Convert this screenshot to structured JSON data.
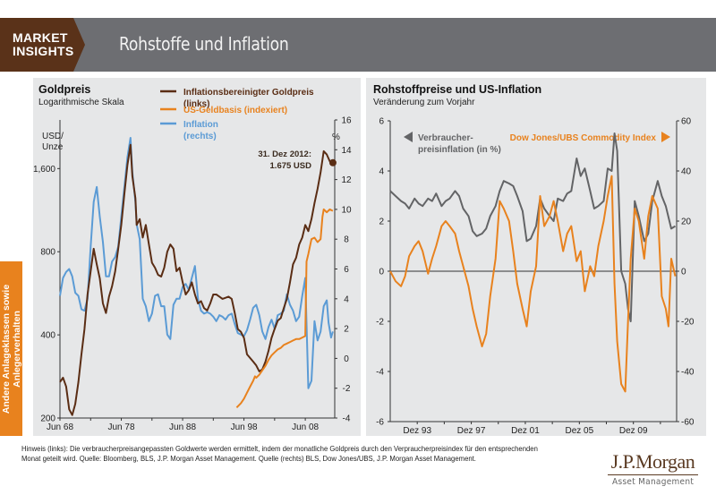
{
  "header": {
    "badge_line1": "MARKET",
    "badge_line2": "INSIGHTS",
    "title": "Rohstoffe und Inflation"
  },
  "sidebar": {
    "tab_line1": "Andere Anlageklassen sowie",
    "tab_line2": "Anlegerverhalten"
  },
  "colors": {
    "brown": "#5a2d14",
    "orange": "#e8821e",
    "blue": "#5b9bd5",
    "gray": "#636466"
  },
  "chart_data": [
    {
      "type": "line",
      "title": "Goldpreis",
      "subtitle": "Logarithmische Skala",
      "ylabel_left": "USD/ Unze",
      "ylabel_right": "%",
      "y_left_scale": "log",
      "y_left_range": [
        200,
        2400
      ],
      "y_left_ticks": [
        "200",
        "400",
        "800",
        "1,600"
      ],
      "y_left_tick_values": [
        200,
        400,
        800,
        1600
      ],
      "y_right_range": [
        -4,
        16
      ],
      "y_right_ticks": [
        "-4",
        "-2",
        "0",
        "2",
        "4",
        "6",
        "8",
        "10",
        "12",
        "14",
        "16"
      ],
      "x_range": [
        1968.5,
        2013.3
      ],
      "x_ticks": [
        "Jun 68",
        "Jun 78",
        "Jun 88",
        "Jun 98",
        "Jun 08"
      ],
      "x_tick_values": [
        1968.5,
        1978.5,
        1988.5,
        1998.5,
        2008.5
      ],
      "annotation": {
        "line1": "31. Dez 2012:",
        "line2": "1.675 USD"
      },
      "legend": [
        {
          "label_line1": "Inflationsbereinigter Goldpreis",
          "label_line2": "(links)",
          "color": "#5a2d14"
        },
        {
          "label_line1": "US-Geldbasis (indexiert)",
          "label_line2": "",
          "color": "#e8821e"
        },
        {
          "label_line1": "Inflation",
          "label_line2": "(rechts)",
          "color": "#5b9bd5"
        }
      ],
      "series": [
        {
          "name": "Inflationsbereinigter Goldpreis (links)",
          "axis": "left",
          "x": [
            1968.5,
            1969,
            1969.5,
            1970,
            1970.5,
            1971,
            1971.5,
            1972,
            1972.5,
            1973,
            1973.5,
            1974,
            1974.5,
            1975,
            1975.5,
            1976,
            1976.5,
            1977,
            1977.5,
            1978,
            1978.5,
            1979,
            1979.5,
            1980,
            1980.3,
            1980.8,
            1981,
            1981.5,
            1982,
            1982.5,
            1983,
            1983.5,
            1984,
            1984.5,
            1985,
            1985.5,
            1986,
            1986.5,
            1987,
            1987.5,
            1988,
            1988.5,
            1989,
            1989.5,
            1990,
            1990.5,
            1991,
            1991.5,
            1992,
            1992.5,
            1993,
            1993.5,
            1994,
            1994.5,
            1995,
            1995.5,
            1996,
            1996.5,
            1997,
            1997.5,
            1998,
            1998.5,
            1999,
            1999.5,
            2000,
            2000.5,
            2001,
            2001.5,
            2002,
            2002.5,
            2003,
            2003.5,
            2004,
            2004.5,
            2005,
            2005.5,
            2006,
            2006.5,
            2007,
            2007.5,
            2008,
            2008.5,
            2009,
            2009.5,
            2010,
            2010.5,
            2011,
            2011.5,
            2012,
            2012.5,
            2013
          ],
          "y": [
            270,
            280,
            260,
            215,
            205,
            225,
            270,
            340,
            420,
            560,
            680,
            820,
            720,
            640,
            520,
            480,
            550,
            600,
            680,
            820,
            1000,
            1300,
            1650,
            1950,
            1500,
            1250,
            1000,
            1050,
            900,
            1000,
            850,
            730,
            700,
            660,
            650,
            700,
            800,
            850,
            820,
            680,
            700,
            620,
            560,
            580,
            620,
            560,
            520,
            530,
            500,
            490,
            520,
            560,
            560,
            550,
            540,
            545,
            550,
            540,
            480,
            420,
            410,
            390,
            340,
            330,
            320,
            310,
            295,
            300,
            320,
            350,
            390,
            420,
            450,
            460,
            500,
            540,
            620,
            720,
            760,
            850,
            900,
            1000,
            950,
            1050,
            1200,
            1350,
            1550,
            1850,
            1800,
            1700,
            1680
          ]
        },
        {
          "name": "US-Geldbasis (indexiert)",
          "axis": "right",
          "x": [
            1997.3,
            1998,
            1998.5,
            1999,
            1999.5,
            2000,
            2000.3,
            2000.5,
            2001,
            2001.5,
            2002,
            2002.5,
            2003,
            2003.5,
            2004,
            2004.5,
            2005,
            2005.5,
            2006,
            2006.5,
            2007,
            2007.5,
            2008,
            2008.5,
            2008.7,
            2009,
            2009.5,
            2010,
            2010.5,
            2011,
            2011.3,
            2011.5,
            2012,
            2012.5,
            2013
          ],
          "y": [
            -3.3,
            -3.0,
            -2.7,
            -2.3,
            -1.9,
            -1.5,
            -1.2,
            -1.3,
            -1.1,
            -0.8,
            -0.5,
            -0.1,
            0.2,
            0.4,
            0.6,
            0.7,
            0.9,
            1.0,
            1.1,
            1.2,
            1.3,
            1.3,
            1.4,
            1.5,
            6.5,
            7.0,
            8.0,
            8.1,
            7.8,
            8.0,
            9.5,
            10.0,
            9.8,
            10.0,
            9.9
          ]
        },
        {
          "name": "Inflation (rechts)",
          "axis": "right",
          "x": [
            1968.5,
            1969,
            1969.5,
            1970,
            1970.5,
            1971,
            1971.5,
            1972,
            1972.5,
            1973,
            1973.5,
            1974,
            1974.5,
            1975,
            1975.5,
            1976,
            1976.5,
            1977,
            1977.5,
            1978,
            1978.5,
            1979,
            1979.5,
            1980,
            1980.3,
            1980.8,
            1981,
            1981.5,
            1982,
            1982.5,
            1983,
            1983.5,
            1984,
            1984.5,
            1985,
            1985.5,
            1986,
            1986.5,
            1987,
            1987.5,
            1988,
            1988.5,
            1989,
            1989.5,
            1990,
            1990.5,
            1991,
            1991.5,
            1992,
            1992.5,
            1993,
            1993.5,
            1994,
            1994.5,
            1995,
            1995.5,
            1996,
            1996.5,
            1997,
            1997.5,
            1998,
            1998.5,
            1999,
            1999.5,
            2000,
            2000.5,
            2001,
            2001.5,
            2002,
            2002.5,
            2003,
            2003.5,
            2004,
            2004.5,
            2005,
            2005.5,
            2006,
            2006.5,
            2007,
            2007.5,
            2008,
            2008.5,
            2009,
            2009.5,
            2010,
            2010.5,
            2011,
            2011.5,
            2012,
            2012.3,
            2012.7,
            2013
          ],
          "y": [
            4.2,
            5.4,
            5.8,
            6.0,
            5.5,
            4.4,
            4.2,
            3.3,
            3.2,
            4.0,
            7.5,
            10.5,
            11.5,
            9.5,
            7.8,
            5.5,
            5.5,
            6.5,
            6.8,
            7.5,
            9.5,
            11.5,
            13.5,
            14.8,
            12.5,
            10.5,
            9.0,
            8.0,
            4.0,
            3.5,
            2.5,
            3.0,
            4.2,
            4.3,
            3.5,
            3.5,
            1.6,
            1.3,
            3.6,
            4.0,
            4.0,
            4.8,
            5.0,
            4.6,
            5.4,
            6.2,
            4.0,
            3.2,
            3.0,
            3.1,
            3.0,
            2.8,
            2.5,
            2.9,
            2.8,
            2.6,
            2.9,
            3.0,
            2.3,
            1.7,
            1.6,
            1.5,
            1.9,
            2.6,
            3.4,
            3.6,
            2.9,
            1.8,
            1.3,
            2.1,
            2.6,
            2.0,
            2.9,
            3.0,
            3.2,
            4.3,
            3.6,
            3.2,
            2.5,
            2.8,
            4.2,
            5.4,
            -2.0,
            -1.5,
            2.5,
            1.2,
            1.8,
            3.5,
            3.9,
            2.4,
            1.4,
            1.8
          ]
        }
      ]
    },
    {
      "type": "line",
      "title": "Rohstoffpreise und US-Inflation",
      "subtitle": "Veränderung zum Vorjahr",
      "y_left_range": [
        -6,
        6
      ],
      "y_left_ticks": [
        "-6",
        "-4",
        "-2",
        "0",
        "2",
        "4",
        "6"
      ],
      "y_right_range": [
        -60,
        60
      ],
      "y_right_ticks": [
        "-60",
        "-40",
        "-20",
        "0",
        "20",
        "40",
        "60"
      ],
      "x_range": [
        1991.9,
        2013.1
      ],
      "x_ticks": [
        "Dez 93",
        "Dez 97",
        "Dez 01",
        "Dez 05",
        "Dez 09"
      ],
      "x_tick_values": [
        1993.9,
        1997.9,
        2001.9,
        2005.9,
        2009.9
      ],
      "legend": [
        {
          "label_line1": "Verbraucher-",
          "label_line2": "preisinflation (in %)",
          "color": "#636466",
          "marker": "left-arrow"
        },
        {
          "label_line1": "Dow Jones/UBS Commodity Index",
          "label_line2": "",
          "color": "#e8821e",
          "marker": "right-arrow"
        }
      ],
      "series": [
        {
          "name": "Verbraucherpreisinflation (in %)",
          "axis": "left",
          "x": [
            1991.9,
            1992.3,
            1992.7,
            1993,
            1993.3,
            1993.7,
            1994,
            1994.3,
            1994.7,
            1995,
            1995.3,
            1995.7,
            1996,
            1996.3,
            1996.7,
            1997,
            1997.3,
            1997.7,
            1998,
            1998.3,
            1998.7,
            1999,
            1999.3,
            1999.7,
            2000,
            2000.3,
            2000.7,
            2001,
            2001.3,
            2001.7,
            2002,
            2002.3,
            2002.7,
            2003,
            2003.3,
            2003.7,
            2004,
            2004.3,
            2004.7,
            2005,
            2005.3,
            2005.7,
            2006,
            2006.3,
            2006.7,
            2007,
            2007.3,
            2007.7,
            2008,
            2008.3,
            2008.5,
            2008.7,
            2009,
            2009.3,
            2009.5,
            2009.7,
            2010,
            2010.3,
            2010.7,
            2011,
            2011.3,
            2011.7,
            2012,
            2012.3,
            2012.7,
            2013
          ],
          "y": [
            3.2,
            3.0,
            2.8,
            2.7,
            2.5,
            2.9,
            2.7,
            2.6,
            2.9,
            2.8,
            3.1,
            2.6,
            2.8,
            2.9,
            3.2,
            3.0,
            2.5,
            2.2,
            1.6,
            1.4,
            1.5,
            1.7,
            2.2,
            2.6,
            3.2,
            3.6,
            3.5,
            3.4,
            3.0,
            2.4,
            1.2,
            1.3,
            1.8,
            2.9,
            2.5,
            2.2,
            2.0,
            2.9,
            2.8,
            3.1,
            3.2,
            4.5,
            3.8,
            4.1,
            3.2,
            2.5,
            2.6,
            2.8,
            4.1,
            4.0,
            5.5,
            4.8,
            0.0,
            -0.5,
            -1.5,
            -2.0,
            2.8,
            2.2,
            1.2,
            1.5,
            2.8,
            3.6,
            3.0,
            2.6,
            1.7,
            1.8
          ]
        },
        {
          "name": "Dow Jones/UBS Commodity Index",
          "axis": "right",
          "x": [
            1991.9,
            1992.3,
            1992.7,
            1993,
            1993.3,
            1993.7,
            1994,
            1994.3,
            1994.7,
            1995,
            1995.3,
            1995.7,
            1996,
            1996.3,
            1996.7,
            1997,
            1997.3,
            1997.7,
            1998,
            1998.3,
            1998.7,
            1999,
            1999.3,
            1999.7,
            2000,
            2000.3,
            2000.7,
            2001,
            2001.3,
            2001.7,
            2002,
            2002.3,
            2002.7,
            2003,
            2003.3,
            2003.7,
            2004,
            2004.3,
            2004.7,
            2005,
            2005.3,
            2005.7,
            2006,
            2006.3,
            2006.7,
            2007,
            2007.3,
            2007.7,
            2008,
            2008.3,
            2008.5,
            2008.7,
            2009,
            2009.3,
            2009.5,
            2009.7,
            2010,
            2010.3,
            2010.7,
            2011,
            2011.3,
            2011.7,
            2012,
            2012.3,
            2012.5,
            2012.7,
            2013
          ],
          "y": [
            0,
            -4,
            -6,
            -2,
            6,
            10,
            12,
            8,
            -1,
            5,
            10,
            18,
            20,
            18,
            15,
            8,
            2,
            -6,
            -15,
            -22,
            -30,
            -25,
            -10,
            5,
            28,
            25,
            20,
            8,
            -5,
            -15,
            -22,
            -8,
            2,
            30,
            18,
            22,
            28,
            20,
            8,
            15,
            18,
            4,
            8,
            -8,
            2,
            -2,
            10,
            20,
            30,
            38,
            -5,
            -28,
            -45,
            -48,
            -20,
            5,
            25,
            20,
            5,
            22,
            30,
            25,
            -10,
            -15,
            -22,
            5,
            -2
          ]
        }
      ]
    }
  ],
  "footnote": {
    "line1": "Hinweis (links): Die verbraucherpreisangepassten Goldwerte werden ermittelt, indem der monatliche Goldpreis durch den Verpraucherpreisindex für den entsprechenden",
    "line2": "Monat geteilt wird. Quelle: Bloomberg, BLS, J.P. Morgan Asset Management. Quelle (rechts) BLS, Dow Jones/UBS, J.P. Morgan Asset Management."
  },
  "logo": {
    "main": "J.P.Morgan",
    "sub": "Asset Management"
  }
}
